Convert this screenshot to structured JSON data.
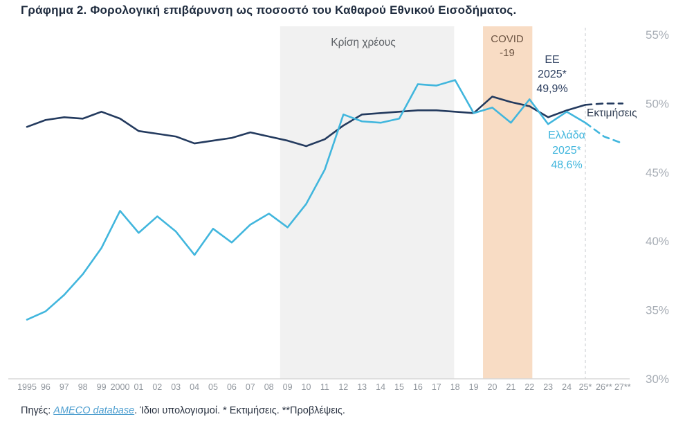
{
  "title": "Γράφημα 2. Φορολογική επιβάρυνση ως ποσοστό του Καθαρού Εθνικού Εισοδήματος.",
  "footer": {
    "sources_label": "Πηγές: ",
    "link_text": "AMECO database",
    "rest": ". Ίδιοι υπολογισμοί. * Εκτιμήσεις. **Προβλέψεις."
  },
  "chart_data": {
    "type": "line",
    "title": "Φορολογική επιβάρυνση ως ποσοστό του Καθαρού Εθνικού Εισοδήματος",
    "ylim": [
      30,
      55
    ],
    "grid": false,
    "legend_position": "none (direct labels on chart)",
    "x_start_year": 1995,
    "x_labels": [
      "1995",
      "96",
      "97",
      "98",
      "99",
      "2000",
      "01",
      "02",
      "03",
      "04",
      "05",
      "06",
      "07",
      "08",
      "09",
      "10",
      "11",
      "12",
      "13",
      "14",
      "15",
      "16",
      "17",
      "18",
      "19",
      "20",
      "21",
      "22",
      "23",
      "24",
      "25*",
      "26**",
      "27**"
    ],
    "yticks": [
      {
        "label": "55%",
        "value": 55
      },
      {
        "label": "50%",
        "value": 50
      },
      {
        "label": "45%",
        "value": 45
      },
      {
        "label": "40%",
        "value": 40
      },
      {
        "label": "35%",
        "value": 35
      },
      {
        "label": "30%",
        "value": 30
      }
    ],
    "series": [
      {
        "id": "eu",
        "name": "ΕΕ",
        "color": "#233a5e",
        "solid_points": 31,
        "forecast_style": "dashed",
        "values": [
          48.3,
          48.8,
          49.0,
          48.9,
          49.4,
          48.9,
          48.0,
          47.8,
          47.6,
          47.1,
          47.3,
          47.5,
          47.9,
          47.6,
          47.3,
          46.9,
          47.4,
          48.4,
          49.2,
          49.3,
          49.4,
          49.5,
          49.5,
          49.4,
          49.3,
          50.5,
          50.1,
          49.8,
          49.0,
          49.5,
          49.9,
          50.0,
          50.0
        ]
      },
      {
        "id": "greece",
        "name": "Ελλάδα",
        "color": "#41b6dd",
        "solid_points": 31,
        "forecast_style": "dashed",
        "values": [
          34.3,
          34.9,
          36.1,
          37.6,
          39.5,
          42.2,
          40.6,
          41.8,
          40.7,
          39.0,
          40.9,
          39.9,
          41.2,
          42.0,
          41.0,
          42.7,
          45.2,
          49.2,
          48.7,
          48.6,
          48.9,
          51.4,
          51.3,
          51.7,
          49.3,
          49.7,
          48.6,
          50.3,
          48.5,
          49.4,
          48.6,
          47.6,
          47.1
        ]
      }
    ],
    "regions": [
      {
        "id": "debt-crisis-band",
        "label": "Κρίση χρέους",
        "from": 2008.6,
        "to": 2017.95,
        "color": "#f1f1f1"
      },
      {
        "id": "covid-band",
        "label": "COVID-19",
        "from": 2019.5,
        "to": 2022.15,
        "color": "#f8dcc4"
      }
    ],
    "divider": {
      "year": 2025,
      "label": "Εκτιμήσεις"
    },
    "annotations": {
      "debt_crisis": "Κρίση χρέους",
      "covid": "COVID\n-19",
      "eu_2025": "ΕΕ\n2025*\n49,9%",
      "greece_2025": "Ελλάδα\n2025*\n48,6%",
      "estimates": "Εκτιμήσεις"
    }
  }
}
